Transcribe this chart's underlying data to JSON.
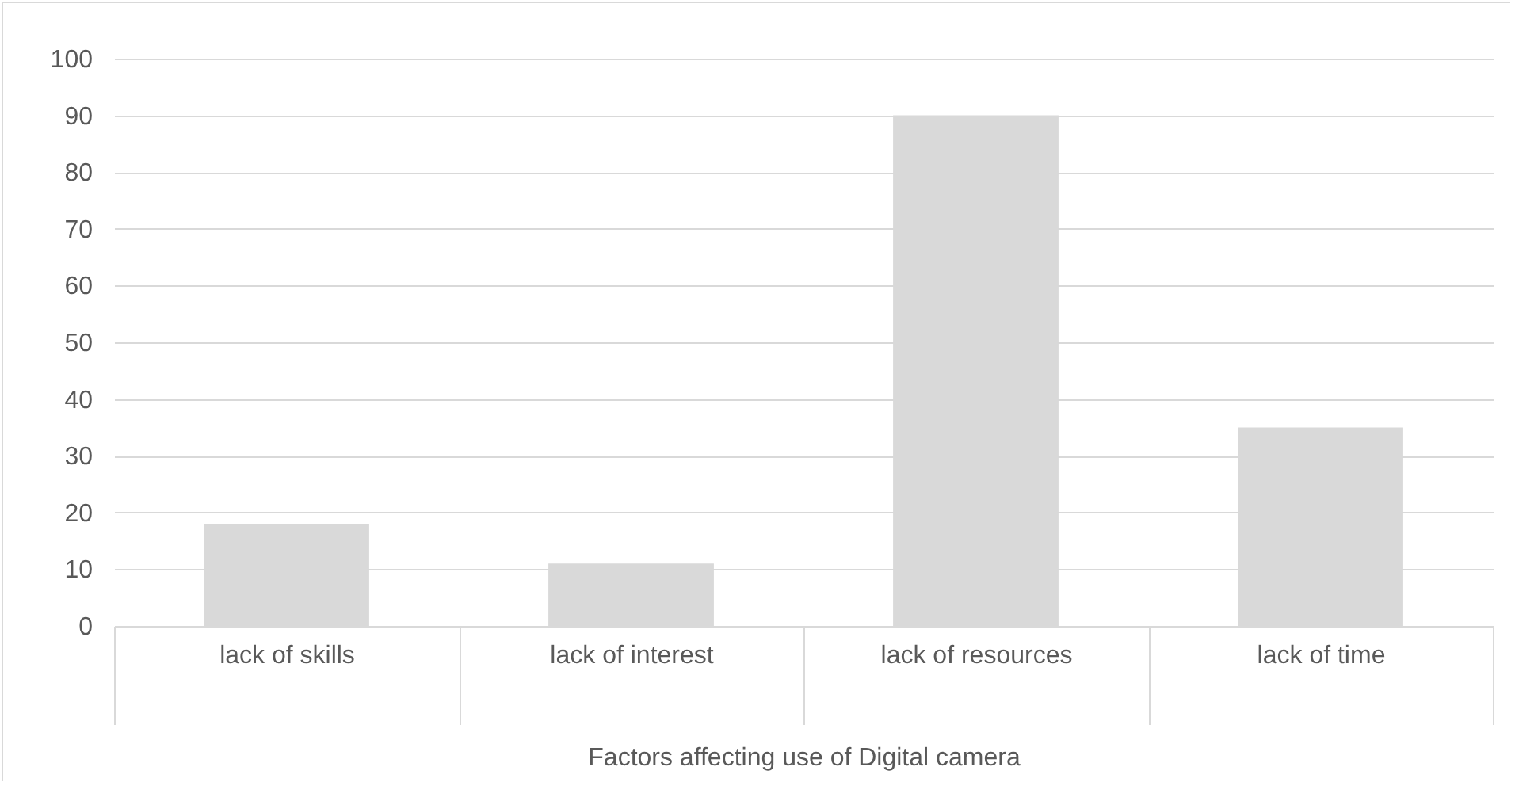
{
  "chart_data": {
    "type": "bar",
    "xlabel": "Factors affecting use of Digital camera",
    "categories": [
      "lack of skills",
      "lack of interest",
      "lack of resources",
      "lack of time"
    ],
    "values": [
      18,
      11,
      90,
      35
    ],
    "color": "#d9d9d9",
    "ylim": [
      0,
      100
    ],
    "yticks": [
      0,
      10,
      20,
      30,
      40,
      50,
      60,
      70,
      80,
      90,
      100
    ],
    "grid": "y"
  }
}
